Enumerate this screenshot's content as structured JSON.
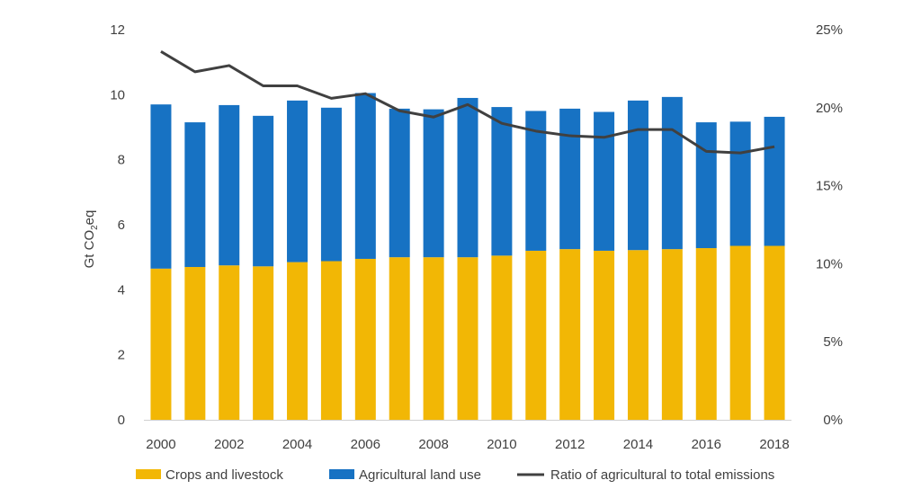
{
  "chart_data": {
    "type": "bar",
    "stacked": true,
    "categories": [
      "2000",
      "2001",
      "2002",
      "2003",
      "2004",
      "2005",
      "2006",
      "2007",
      "2008",
      "2009",
      "2010",
      "2011",
      "2012",
      "2013",
      "2014",
      "2015",
      "2016",
      "2017",
      "2018"
    ],
    "x_tick_labels": [
      "2000",
      "2002",
      "2004",
      "2006",
      "2008",
      "2010",
      "2012",
      "2014",
      "2016",
      "2018"
    ],
    "series": [
      {
        "name": "Crops and livestock",
        "kind": "bar",
        "axis": "left",
        "color": "#F2B705",
        "values": [
          4.65,
          4.7,
          4.75,
          4.72,
          4.85,
          4.88,
          4.95,
          5.0,
          5.0,
          5.0,
          5.05,
          5.2,
          5.25,
          5.2,
          5.22,
          5.25,
          5.28,
          5.35,
          5.35
        ]
      },
      {
        "name": "Agricultural land use",
        "kind": "bar",
        "axis": "left",
        "color": "#1772C3",
        "values": [
          5.05,
          4.45,
          4.93,
          4.63,
          4.97,
          4.72,
          5.1,
          4.57,
          4.55,
          4.9,
          4.57,
          4.3,
          4.32,
          4.27,
          4.6,
          4.68,
          3.87,
          3.82,
          3.97
        ]
      },
      {
        "name": "Ratio of agricultural to total emissions",
        "kind": "line",
        "axis": "right",
        "color": "#404040",
        "values": [
          23.6,
          22.3,
          22.7,
          21.4,
          21.4,
          20.6,
          20.9,
          19.8,
          19.4,
          20.2,
          19.0,
          18.5,
          18.2,
          18.1,
          18.6,
          18.6,
          17.2,
          17.1,
          17.5
        ]
      }
    ],
    "y_left": {
      "label": "Gt CO2eq",
      "min": 0,
      "max": 12,
      "ticks": [
        "0",
        "2",
        "4",
        "6",
        "8",
        "10",
        "12"
      ]
    },
    "y_right": {
      "min": 0,
      "max": 25,
      "ticks": [
        "0%",
        "5%",
        "10%",
        "15%",
        "20%",
        "25%"
      ]
    },
    "legend": {
      "position": "bottom",
      "items": [
        "Crops and livestock",
        "Agricultural land use",
        "Ratio of agricultural to total emissions"
      ]
    },
    "grid": false
  }
}
